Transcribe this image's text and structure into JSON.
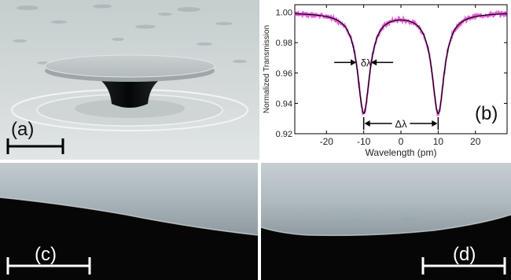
{
  "figure": {
    "panels": [
      {
        "id": "a",
        "label": "(a)",
        "content": "sem-microdisk"
      },
      {
        "id": "b",
        "label": "(b)",
        "content": "transmission-spectrum"
      },
      {
        "id": "c",
        "label": "(c)",
        "content": "sem-edge-closeup"
      },
      {
        "id": "d",
        "label": "(d)",
        "content": "sem-edge-closeup"
      }
    ],
    "annotations": {
      "linewidth": "δλ",
      "splitting": "Δλ"
    }
  },
  "chart_data": {
    "type": "line",
    "xlabel": "Wavelength (pm)",
    "ylabel": "Normalized Transmission",
    "xlim": [
      -28.5,
      28.5
    ],
    "ylim": [
      0.92,
      1.005
    ],
    "xticks": [
      -20,
      -10,
      0,
      10,
      20
    ],
    "yticks": [
      0.92,
      0.94,
      0.96,
      0.98,
      1.0
    ],
    "ytick_labels": [
      "0.92",
      "0.94",
      "0.96",
      "0.98",
      "1.00"
    ],
    "grid": false,
    "series": [
      {
        "role": "measured",
        "color": "#e040d0"
      },
      {
        "role": "fit",
        "color": "#000000"
      }
    ],
    "dips": [
      {
        "center": -10,
        "min_transmission": 0.934,
        "fwhm": 4
      },
      {
        "center": 10,
        "min_transmission": 0.934,
        "fwhm": 4
      }
    ],
    "baseline": 1.0
  }
}
